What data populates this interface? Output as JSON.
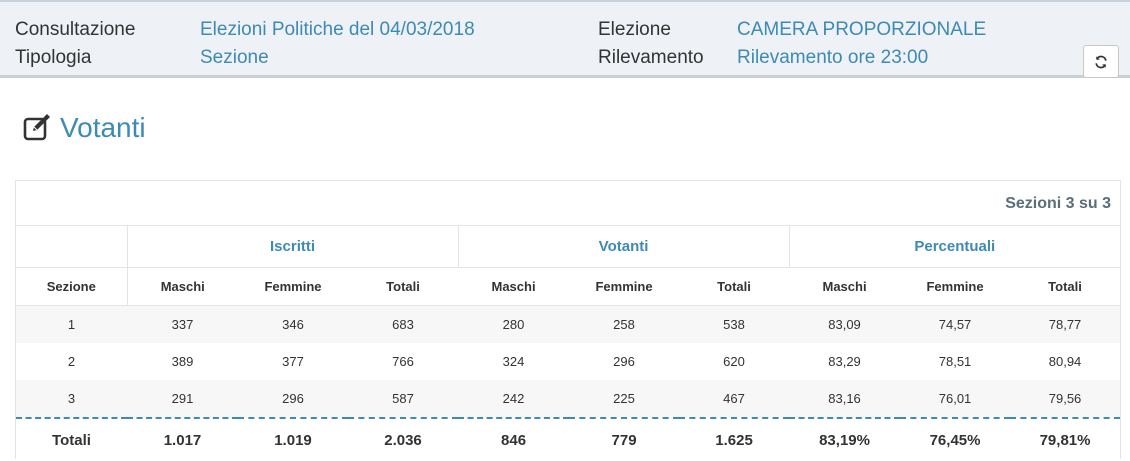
{
  "header": {
    "consultazione_label": "Consultazione",
    "consultazione_value": "Elezioni Politiche del 04/03/2018",
    "tipologia_label": "Tipologia",
    "tipologia_value": "Sezione",
    "elezione_label": "Elezione",
    "elezione_value": "CAMERA PROPORZIONALE",
    "rilevamento_label": "Rilevamento",
    "rilevamento_value": "Rilevamento ore 23:00",
    "refresh_icon": "refresh-icon"
  },
  "page": {
    "title": "Votanti",
    "title_icon": "edit-icon",
    "accent_color": "#3d8ab4"
  },
  "table": {
    "sections_count": "Sezioni 3 su 3",
    "groups": [
      "Iscritti",
      "Votanti",
      "Percentuali"
    ],
    "columns": [
      "Sezione",
      "Maschi",
      "Femmine",
      "Totali",
      "Maschi",
      "Femmine",
      "Totali",
      "Maschi",
      "Femmine",
      "Totali"
    ],
    "rows": [
      [
        "1",
        "337",
        "346",
        "683",
        "280",
        "258",
        "538",
        "83,09",
        "74,57",
        "78,77"
      ],
      [
        "2",
        "389",
        "377",
        "766",
        "324",
        "296",
        "620",
        "83,29",
        "78,51",
        "80,94"
      ],
      [
        "3",
        "291",
        "296",
        "587",
        "242",
        "225",
        "467",
        "83,16",
        "76,01",
        "79,56"
      ]
    ],
    "totals": [
      "Totali",
      "1.017",
      "1.019",
      "2.036",
      "846",
      "779",
      "1.625",
      "83,19%",
      "76,45%",
      "79,81%"
    ]
  }
}
